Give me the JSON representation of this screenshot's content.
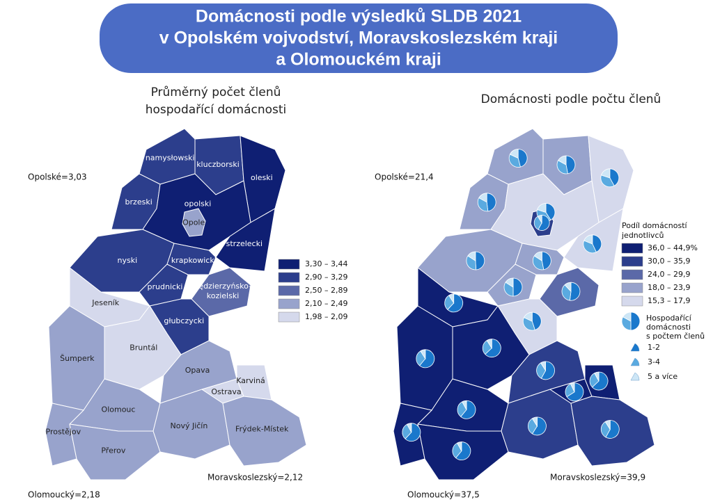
{
  "header": {
    "title_lines": [
      "Domácnosti podle výsledků SLDB 2021",
      "v Opolském vojvodství, Moravskoslezském kraji",
      "a Olomouckém kraji"
    ]
  },
  "left_map": {
    "title_lines": [
      "Průměrný počet členů",
      "hospodařící domácnosti"
    ],
    "labels": [
      "namysłowski",
      "kluczborski",
      "oleski",
      "brzeski",
      "opolski",
      "Opole",
      "strzelecki",
      "nyski",
      "prudnicki",
      "krapkowicki",
      "kędzierzyńsko-",
      "kozielski",
      "głubczycki",
      "Jeseník",
      "Bruntál",
      "Šumperk",
      "Olomouc",
      "Prostějov",
      "Přerov",
      "Opava",
      "Nový Jičín",
      "Ostrava",
      "Karviná",
      "Frýdek-Místek"
    ],
    "totals": [
      "Opolské=3,03",
      "Olomoucký=2,18",
      "Moravskoslezský=2,12"
    ],
    "legend": [
      "3,30 – 3,44",
      "2,90 – 3,29",
      "2,50 – 2,89",
      "2,10 – 2,49",
      "1,98 – 2,09"
    ]
  },
  "right_map": {
    "title": "Domácnosti podle počtu členů",
    "totals": [
      "Opolské=21,4",
      "Olomoucký=37,5",
      "Moravskoslezský=39,9"
    ],
    "legend_title_lines": [
      "Podíl domácností",
      "jednotlivců"
    ],
    "legend": [
      "36,0 – 44,9%",
      "30,0 – 35,9",
      "24,0 – 29,9",
      "18,0 – 23,9",
      "15,3 – 17,9"
    ],
    "pie_legend_title_lines": [
      "Hospodařící",
      "domácnosti",
      "s počtem členů"
    ],
    "pie_legend": [
      "1-2",
      "3-4",
      "5 a více"
    ],
    "pie_shares": [
      [
        46,
        36,
        18
      ],
      [
        47,
        36,
        17
      ],
      [
        42,
        38,
        20
      ],
      [
        48,
        35,
        17
      ],
      [
        41,
        39,
        20
      ],
      [
        58,
        33,
        9
      ],
      [
        43,
        38,
        19
      ],
      [
        49,
        35,
        16
      ],
      [
        50,
        34,
        16
      ],
      [
        47,
        37,
        16
      ],
      [
        52,
        36,
        12
      ],
      [
        45,
        37,
        18
      ],
      [
        62,
        29,
        9
      ],
      [
        63,
        28,
        9
      ],
      [
        61,
        30,
        9
      ],
      [
        61,
        31,
        8
      ],
      [
        62,
        30,
        8
      ],
      [
        61,
        31,
        8
      ],
      [
        58,
        33,
        9
      ],
      [
        59,
        32,
        9
      ],
      [
        66,
        27,
        7
      ],
      [
        63,
        29,
        8
      ],
      [
        58,
        33,
        9
      ]
    ]
  }
}
